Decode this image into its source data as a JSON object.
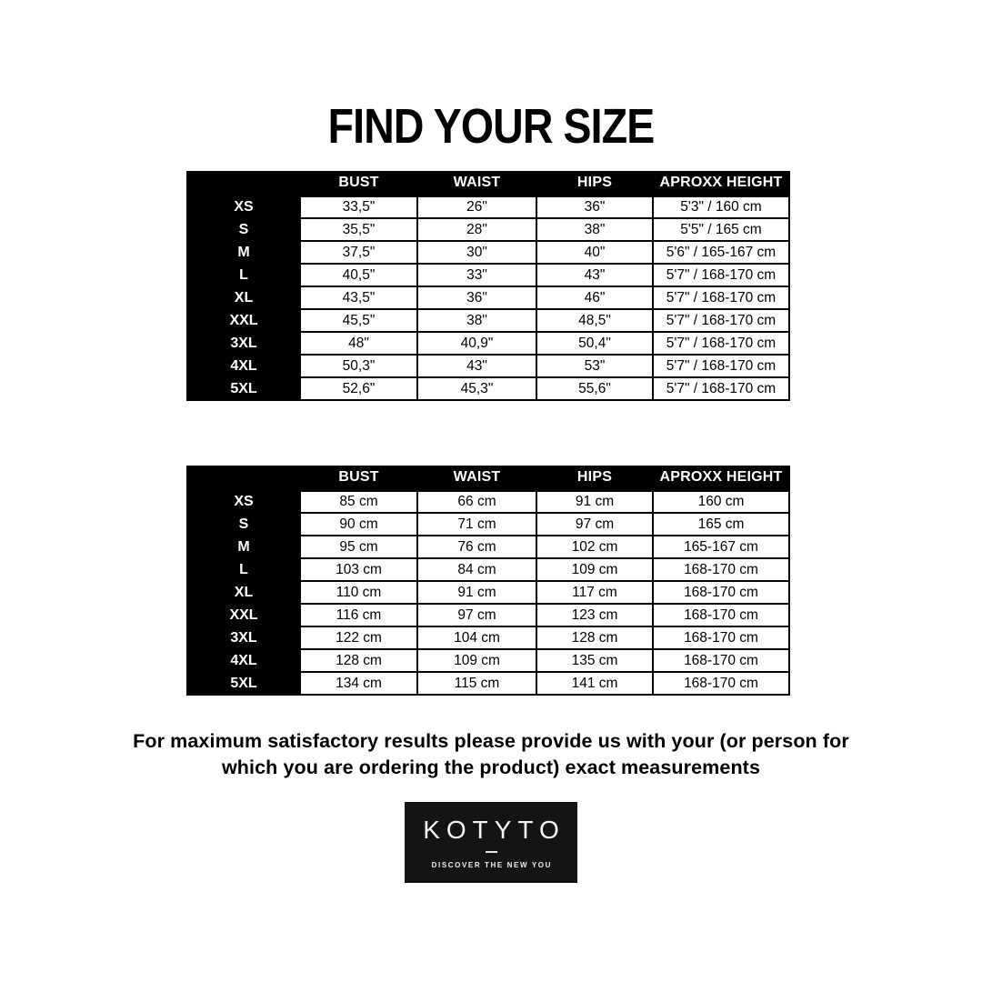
{
  "title": "FIND YOUR SIZE",
  "colors": {
    "table_bg": "#000000",
    "cell_bg": "#ffffff",
    "text": "#000000",
    "logo_bg": "#141414"
  },
  "tables": [
    {
      "unit": "inches",
      "headers": [
        "BUST",
        "WAIST",
        "HIPS",
        "APROXX HEIGHT"
      ],
      "rows": [
        {
          "size": "XS",
          "bust": "33,5\"",
          "waist": "26\"",
          "hips": "36\"",
          "height": "5'3\" / 160 cm"
        },
        {
          "size": "S",
          "bust": "35,5\"",
          "waist": "28\"",
          "hips": "38\"",
          "height": "5'5\" / 165 cm"
        },
        {
          "size": "M",
          "bust": "37,5\"",
          "waist": "30\"",
          "hips": "40\"",
          "height": "5'6\" / 165-167 cm"
        },
        {
          "size": "L",
          "bust": "40,5\"",
          "waist": "33\"",
          "hips": "43\"",
          "height": "5'7\" / 168-170 cm"
        },
        {
          "size": "XL",
          "bust": "43,5\"",
          "waist": "36\"",
          "hips": "46\"",
          "height": "5'7\" / 168-170 cm"
        },
        {
          "size": "XXL",
          "bust": "45,5\"",
          "waist": "38\"",
          "hips": "48,5\"",
          "height": "5'7\" / 168-170 cm"
        },
        {
          "size": "3XL",
          "bust": "48\"",
          "waist": "40,9\"",
          "hips": "50,4\"",
          "height": "5'7\" / 168-170 cm"
        },
        {
          "size": "4XL",
          "bust": "50,3\"",
          "waist": "43\"",
          "hips": "53\"",
          "height": "5'7\" / 168-170 cm"
        },
        {
          "size": "5XL",
          "bust": "52,6\"",
          "waist": "45,3\"",
          "hips": "55,6\"",
          "height": "5'7\" / 168-170 cm"
        }
      ]
    },
    {
      "unit": "cm",
      "headers": [
        "BUST",
        "WAIST",
        "HIPS",
        "APROXX HEIGHT"
      ],
      "rows": [
        {
          "size": "XS",
          "bust": "85 cm",
          "waist": "66 cm",
          "hips": "91 cm",
          "height": "160 cm"
        },
        {
          "size": "S",
          "bust": "90 cm",
          "waist": "71 cm",
          "hips": "97 cm",
          "height": "165 cm"
        },
        {
          "size": "M",
          "bust": "95 cm",
          "waist": "76 cm",
          "hips": "102 cm",
          "height": "165-167 cm"
        },
        {
          "size": "L",
          "bust": "103 cm",
          "waist": "84 cm",
          "hips": "109 cm",
          "height": "168-170 cm"
        },
        {
          "size": "XL",
          "bust": "110 cm",
          "waist": "91 cm",
          "hips": "117 cm",
          "height": "168-170 cm"
        },
        {
          "size": "XXL",
          "bust": "116 cm",
          "waist": "97 cm",
          "hips": "123 cm",
          "height": "168-170 cm"
        },
        {
          "size": "3XL",
          "bust": "122 cm",
          "waist": "104 cm",
          "hips": "128 cm",
          "height": "168-170 cm"
        },
        {
          "size": "4XL",
          "bust": "128 cm",
          "waist": "109 cm",
          "hips": "135 cm",
          "height": "168-170 cm"
        },
        {
          "size": "5XL",
          "bust": "134 cm",
          "waist": "115 cm",
          "hips": "141 cm",
          "height": "168-170 cm"
        }
      ]
    }
  ],
  "note": {
    "line1": "For maximum satisfactory results please provide us with your (or person for",
    "line2": "which you are ordering the product) exact measurements"
  },
  "logo": {
    "brand": "KOTYTO",
    "tagline": "DISCOVER THE NEW YOU"
  }
}
